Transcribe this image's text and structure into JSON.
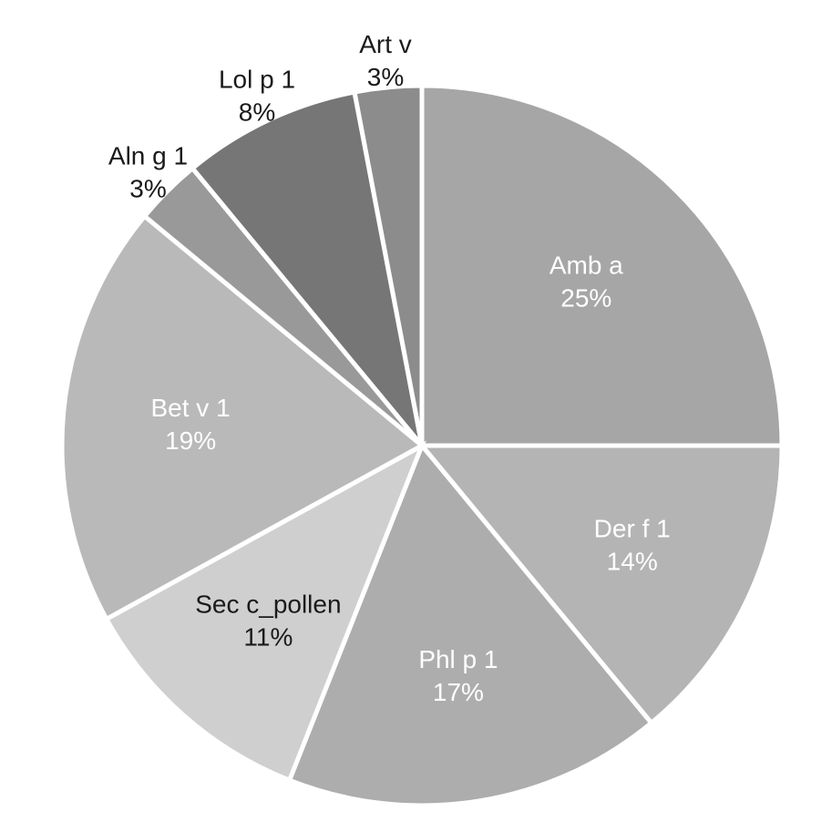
{
  "chart_data": {
    "type": "pie",
    "title": "",
    "start_angle_deg": 0,
    "direction": "clockwise",
    "slices": [
      {
        "name": "Amb a",
        "value": 25,
        "label": "25%",
        "color": "#a6a6a6",
        "label_color": "light",
        "label_position": "inside"
      },
      {
        "name": "Der f 1",
        "value": 14,
        "label": "14%",
        "color": "#b4b4b4",
        "label_color": "light",
        "label_position": "inside"
      },
      {
        "name": "Phl p 1",
        "value": 17,
        "label": "17%",
        "color": "#adadad",
        "label_color": "light",
        "label_position": "inside"
      },
      {
        "name": "Sec c_pollen",
        "value": 11,
        "label": "11%",
        "color": "#cfcfcf",
        "label_color": "dark",
        "label_position": "inside"
      },
      {
        "name": "Bet v 1",
        "value": 19,
        "label": "19%",
        "color": "#b9b9b9",
        "label_color": "light",
        "label_position": "inside"
      },
      {
        "name": "Aln g 1",
        "value": 3,
        "label": "3%",
        "color": "#999999",
        "label_color": "dark",
        "label_position": "outside"
      },
      {
        "name": "Lol p 1",
        "value": 8,
        "label": "8%",
        "color": "#767676",
        "label_color": "dark",
        "label_position": "outside"
      },
      {
        "name": "Art v",
        "value": 3,
        "label": "3%",
        "color": "#8c8c8c",
        "label_color": "dark",
        "label_position": "outside"
      }
    ]
  }
}
